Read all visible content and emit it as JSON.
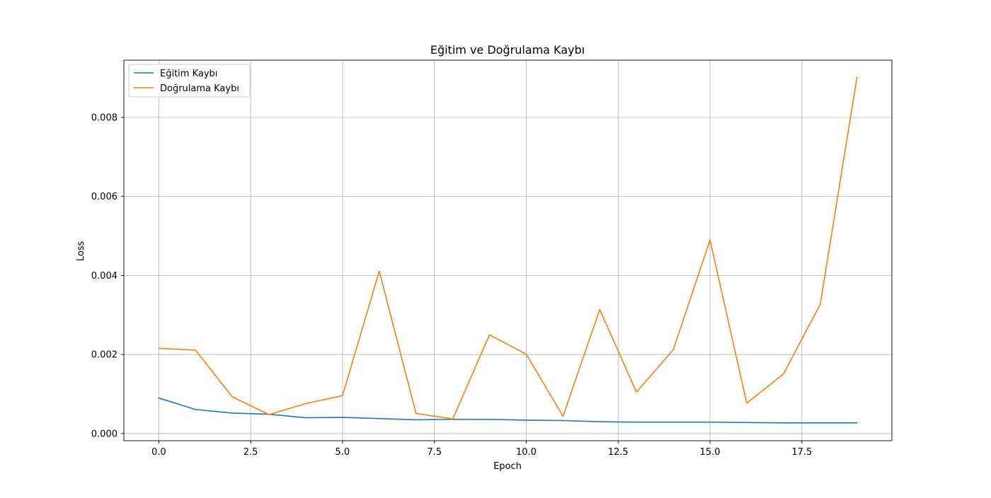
{
  "chart_data": {
    "type": "line",
    "title": "Eğitim ve Doğrulama Kaybı",
    "xlabel": "Epoch",
    "ylabel": "Loss",
    "xlim": [
      -0.95,
      19.95
    ],
    "ylim": [
      -0.00018,
      0.00945
    ],
    "grid": true,
    "legend_position": "upper-left",
    "x": [
      0,
      1,
      2,
      3,
      4,
      5,
      6,
      7,
      8,
      9,
      10,
      11,
      12,
      13,
      14,
      15,
      16,
      17,
      18,
      19
    ],
    "x_ticks": [
      0.0,
      2.5,
      5.0,
      7.5,
      10.0,
      12.5,
      15.0,
      17.5
    ],
    "x_tick_labels": [
      "0.0",
      "2.5",
      "5.0",
      "7.5",
      "10.0",
      "12.5",
      "15.0",
      "17.5"
    ],
    "y_ticks": [
      0.0,
      0.002,
      0.004,
      0.006,
      0.008
    ],
    "y_tick_labels": [
      "0.000",
      "0.002",
      "0.004",
      "0.006",
      "0.008"
    ],
    "series": [
      {
        "name": "Eğitim Kaybı",
        "color": "#1f77b4",
        "values": [
          0.0009,
          0.00061,
          0.00052,
          0.00049,
          0.0004,
          0.00041,
          0.00038,
          0.00035,
          0.00036,
          0.00036,
          0.00034,
          0.00033,
          0.0003,
          0.00029,
          0.00029,
          0.00029,
          0.00028,
          0.00027,
          0.00027,
          0.00027
        ]
      },
      {
        "name": "Doğrulama Kaybı",
        "color": "#ff7f0e",
        "values": [
          0.00216,
          0.00211,
          0.00093,
          0.00048,
          0.00076,
          0.00096,
          0.00411,
          0.00051,
          0.00037,
          0.0025,
          0.00201,
          0.00044,
          0.00314,
          0.00105,
          0.00212,
          0.0049,
          0.00077,
          0.00151,
          0.00327,
          0.00902
        ]
      }
    ]
  }
}
